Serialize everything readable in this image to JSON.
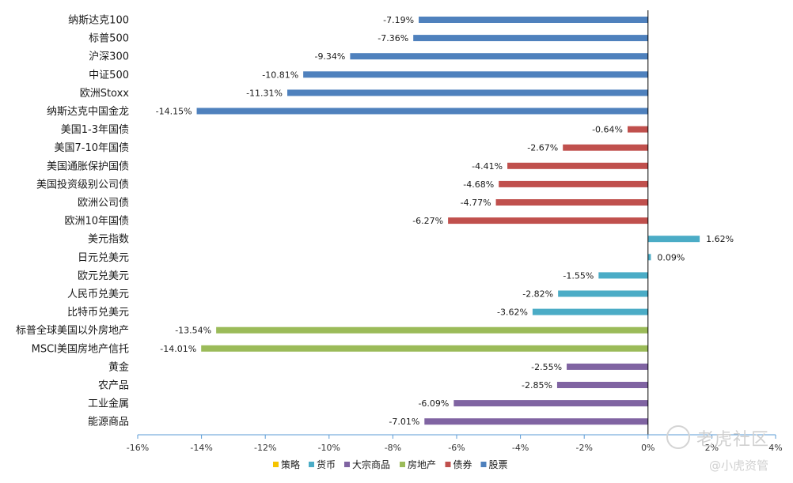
{
  "chart_data": {
    "type": "bar",
    "orientation": "horizontal",
    "categories": [
      "纳斯达克100",
      "标普500",
      "沪深300",
      "中证500",
      "欧洲Stoxx",
      "纳斯达克中国金龙",
      "美国1-3年国债",
      "美国7-10年国债",
      "美国通胀保护国债",
      "美国投资级别公司债",
      "欧洲公司债",
      "欧洲10年国债",
      "美元指数",
      "日元兑美元",
      "欧元兑美元",
      "人民币兑美元",
      "比特币兑美元",
      "标普全球美国以外房地产",
      "MSCI美国房地产信托",
      "黄金",
      "农产品",
      "工业金属",
      "能源商品"
    ],
    "values": [
      -7.19,
      -7.36,
      -9.34,
      -10.81,
      -11.31,
      -14.15,
      -0.64,
      -2.67,
      -4.41,
      -4.68,
      -4.77,
      -6.27,
      1.62,
      0.09,
      -1.55,
      -2.82,
      -3.62,
      -13.54,
      -14.01,
      -2.55,
      -2.85,
      -6.09,
      -7.01
    ],
    "labels": [
      "-7.19%",
      "-7.36%",
      "-9.34%",
      "-10.81%",
      "-11.31%",
      "-14.15%",
      "-0.64%",
      "-2.67%",
      "-4.41%",
      "-4.68%",
      "-4.77%",
      "-6.27%",
      "1.62%",
      "0.09%",
      "-1.55%",
      "-2.82%",
      "-3.62%",
      "-13.54%",
      "-14.01%",
      "-2.55%",
      "-2.85%",
      "-6.09%",
      "-7.01%"
    ],
    "group": [
      "股票",
      "股票",
      "股票",
      "股票",
      "股票",
      "股票",
      "债券",
      "债券",
      "债券",
      "债券",
      "债券",
      "债券",
      "货币",
      "货币",
      "货币",
      "货币",
      "货币",
      "房地产",
      "房地产",
      "大宗商品",
      "大宗商品",
      "大宗商品",
      "大宗商品"
    ],
    "xlim": [
      -16,
      4
    ],
    "xticks": [
      -16,
      -14,
      -12,
      -10,
      -8,
      -6,
      -4,
      -2,
      0,
      2,
      4
    ],
    "xtick_labels": [
      "-16%",
      "-14%",
      "-12%",
      "-10%",
      "-8%",
      "-6%",
      "-4%",
      "-2%",
      "0%",
      "2%",
      "4%"
    ],
    "legend": [
      {
        "name": "策略",
        "color": "#f5c400"
      },
      {
        "name": "货币",
        "color": "#4bacc6"
      },
      {
        "name": "大宗商品",
        "color": "#8064a2"
      },
      {
        "name": "房地产",
        "color": "#9bbb59"
      },
      {
        "name": "债券",
        "color": "#c0504d"
      },
      {
        "name": "股票",
        "color": "#4f81bd"
      }
    ],
    "legend_position": "bottom",
    "grid": false
  },
  "watermark": {
    "line1": "老虎社区",
    "line2": "@小虎资管"
  }
}
